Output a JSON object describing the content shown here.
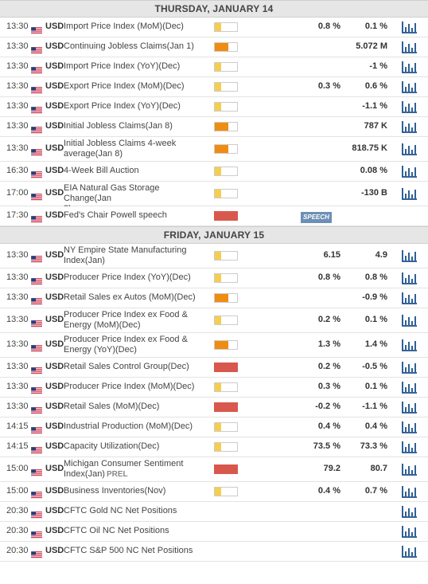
{
  "colors": {
    "impact_low": "#f6cd4f",
    "impact_medium": "#ef8c12",
    "impact_high": "#d8584d",
    "chart_icon": "#1a4f8b",
    "speech_badge": "#6d8fb5"
  },
  "days": [
    {
      "header": "THURSDAY, JANUARY 14",
      "events": [
        {
          "time": "13:30",
          "currency": "USD",
          "lines": [
            "Import Price Index (MoM)(Dec)"
          ],
          "impact": "low",
          "actual": "0.8 %",
          "forecast": "0.1 %"
        },
        {
          "time": "13:30",
          "currency": "USD",
          "lines": [
            "Continuing Jobless Claims(Jan 1)"
          ],
          "impact": "medium",
          "actual": "",
          "forecast": "5.072 M"
        },
        {
          "time": "13:30",
          "currency": "USD",
          "lines": [
            "Import Price Index (YoY)(Dec)"
          ],
          "impact": "low",
          "actual": "",
          "forecast": "-1 %"
        },
        {
          "time": "13:30",
          "currency": "USD",
          "lines": [
            "Export Price Index (MoM)(Dec)"
          ],
          "impact": "low",
          "actual": "0.3 %",
          "forecast": "0.6 %"
        },
        {
          "time": "13:30",
          "currency": "USD",
          "lines": [
            "Export Price Index (YoY)(Dec)"
          ],
          "impact": "low",
          "actual": "",
          "forecast": "-1.1 %"
        },
        {
          "time": "13:30",
          "currency": "USD",
          "lines": [
            "Initial Jobless Claims(Jan 8)"
          ],
          "impact": "medium",
          "actual": "",
          "forecast": "787 K"
        },
        {
          "time": "13:30",
          "currency": "USD",
          "lines": [
            "Initial Jobless Claims 4-week",
            "average(Jan 8)"
          ],
          "impact": "medium",
          "actual": "",
          "forecast": "818.75 K"
        },
        {
          "time": "16:30",
          "currency": "USD",
          "lines": [
            "4-Week Bill Auction"
          ],
          "impact": "low",
          "actual": "",
          "forecast": "0.08 %"
        },
        {
          "time": "17:00",
          "currency": "USD",
          "lines": [
            "EIA Natural Gas Storage Change(Jan",
            "8)"
          ],
          "impact": "low",
          "actual": "",
          "forecast": "-130 B"
        },
        {
          "time": "17:30",
          "currency": "USD",
          "lines": [
            "Fed's Chair Powell speech"
          ],
          "impact": "high",
          "badge": "SPEECH",
          "actual": "",
          "forecast": "",
          "no_chart": true
        }
      ]
    },
    {
      "header": "FRIDAY, JANUARY 15",
      "events": [
        {
          "time": "13:30",
          "currency": "USD",
          "lines": [
            "NY Empire State Manufacturing",
            "Index(Jan)"
          ],
          "impact": "low",
          "actual": "6.15",
          "forecast": "4.9"
        },
        {
          "time": "13:30",
          "currency": "USD",
          "lines": [
            "Producer Price Index (YoY)(Dec)"
          ],
          "impact": "low",
          "actual": "0.8 %",
          "forecast": "0.8 %"
        },
        {
          "time": "13:30",
          "currency": "USD",
          "lines": [
            "Retail Sales ex Autos (MoM)(Dec)"
          ],
          "impact": "medium",
          "actual": "",
          "forecast": "-0.9 %"
        },
        {
          "time": "13:30",
          "currency": "USD",
          "lines": [
            "Producer Price Index ex Food &",
            "Energy (MoM)(Dec)"
          ],
          "impact": "low",
          "actual": "0.2 %",
          "forecast": "0.1 %"
        },
        {
          "time": "13:30",
          "currency": "USD",
          "lines": [
            "Producer Price Index ex Food &",
            "Energy (YoY)(Dec)"
          ],
          "impact": "medium",
          "actual": "1.3 %",
          "forecast": "1.4 %"
        },
        {
          "time": "13:30",
          "currency": "USD",
          "lines": [
            "Retail Sales Control Group(Dec)"
          ],
          "impact": "high",
          "actual": "0.2 %",
          "forecast": "-0.5 %"
        },
        {
          "time": "13:30",
          "currency": "USD",
          "lines": [
            "Producer Price Index (MoM)(Dec)"
          ],
          "impact": "low",
          "actual": "0.3 %",
          "forecast": "0.1 %"
        },
        {
          "time": "13:30",
          "currency": "USD",
          "lines": [
            "Retail Sales (MoM)(Dec)"
          ],
          "impact": "high",
          "actual": "-0.2 %",
          "forecast": "-1.1 %"
        },
        {
          "time": "14:15",
          "currency": "USD",
          "lines": [
            "Industrial Production (MoM)(Dec)"
          ],
          "impact": "low",
          "actual": "0.4 %",
          "forecast": "0.4 %"
        },
        {
          "time": "14:15",
          "currency": "USD",
          "lines": [
            "Capacity Utilization(Dec)"
          ],
          "impact": "low",
          "actual": "73.5 %",
          "forecast": "73.3 %"
        },
        {
          "time": "15:00",
          "currency": "USD",
          "lines": [
            "Michigan Consumer Sentiment",
            "Index(Jan)"
          ],
          "tag": "PREL",
          "impact": "high",
          "actual": "79.2",
          "forecast": "80.7"
        },
        {
          "time": "15:00",
          "currency": "USD",
          "lines": [
            "Business Inventories(Nov)"
          ],
          "impact": "low",
          "actual": "0.4 %",
          "forecast": "0.7 %"
        },
        {
          "time": "20:30",
          "currency": "USD",
          "lines": [
            "CFTC Gold NC Net Positions"
          ],
          "impact": "",
          "actual": "",
          "forecast": ""
        },
        {
          "time": "20:30",
          "currency": "USD",
          "lines": [
            "CFTC Oil NC Net Positions"
          ],
          "impact": "",
          "actual": "",
          "forecast": ""
        },
        {
          "time": "20:30",
          "currency": "USD",
          "lines": [
            "CFTC S&P 500 NC Net Positions"
          ],
          "impact": "",
          "actual": "",
          "forecast": ""
        }
      ]
    }
  ]
}
